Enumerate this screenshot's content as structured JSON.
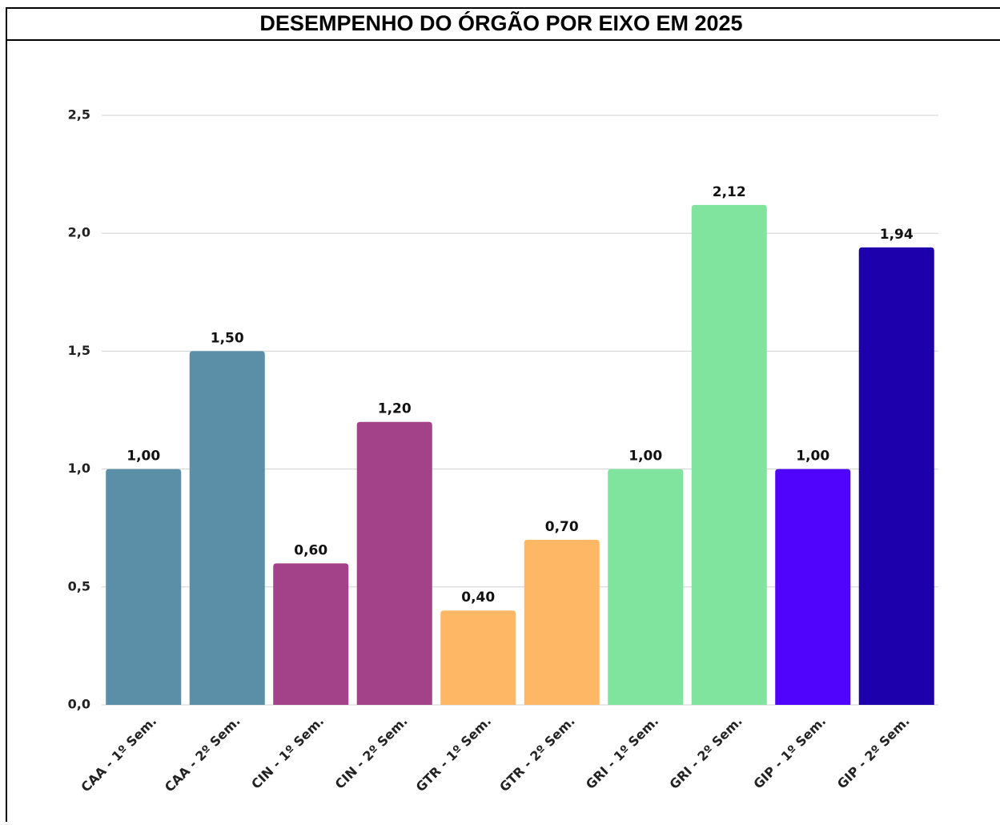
{
  "chart_data": {
    "type": "bar",
    "title": "DESEMPENHO DO ÓRGÃO POR EIXO EM 2025",
    "categories": [
      "CAA - 1º Sem.",
      "CAA - 2º Sem.",
      "CIN - 1º Sem.",
      "CIN - 2º Sem.",
      "GTR - 1º Sem.",
      "GTR - 2º Sem.",
      "GRI - 1º Sem.",
      "GRI - 2º Sem.",
      "GIP - 1º Sem.",
      "GIP - 2º Sem."
    ],
    "values": [
      1.0,
      1.5,
      0.6,
      1.2,
      0.4,
      0.7,
      1.0,
      2.12,
      1.0,
      1.94
    ],
    "value_labels": [
      "1,00",
      "1,50",
      "0,60",
      "1,20",
      "0,40",
      "0,70",
      "1,00",
      "2,12",
      "1,00",
      "1,94"
    ],
    "colors": [
      "#5b8fa8",
      "#5b8fa8",
      "#a34288",
      "#a34288",
      "#fdb765",
      "#fdb765",
      "#80e39e",
      "#80e39e",
      "#5004fb",
      "#1d00ac"
    ],
    "ylim": [
      0,
      2.5
    ],
    "yticks": [
      {
        "value": 0,
        "label": "0,0"
      },
      {
        "value": 0.5,
        "label": "0,5"
      },
      {
        "value": 1.0,
        "label": "1,0"
      },
      {
        "value": 1.5,
        "label": "1,5"
      },
      {
        "value": 2.0,
        "label": "2,0"
      },
      {
        "value": 2.5,
        "label": "2,5"
      }
    ],
    "grid": true
  }
}
